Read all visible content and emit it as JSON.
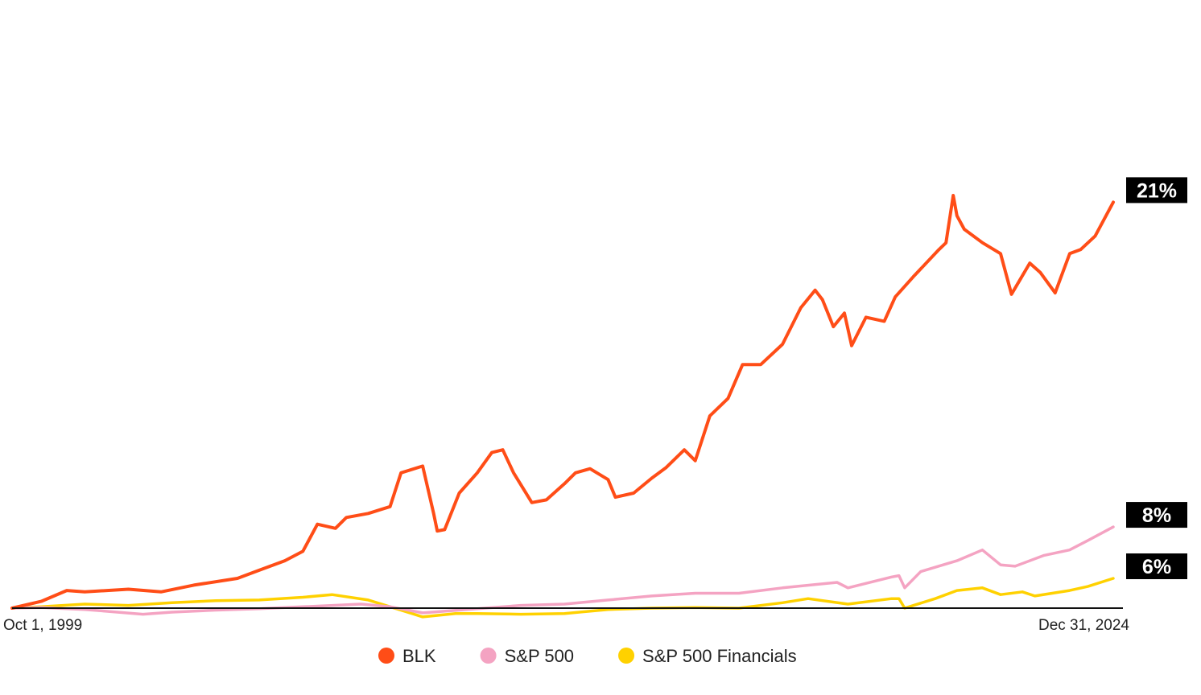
{
  "chart_data": {
    "type": "line",
    "x_start_label": "Oct 1, 1999",
    "x_end_label": "Dec 31, 2024",
    "x_range": [
      "1999-10-01",
      "2024-12-31"
    ],
    "y_range": [
      1,
      40
    ],
    "grid": false,
    "legend_position": "bottom-center",
    "series": [
      {
        "name": "BLK",
        "color": "#ff4d17",
        "end_label": "21%",
        "points": [
          [
            "1999-10-01",
            1.0
          ],
          [
            "2000-06-01",
            1.5
          ],
          [
            "2001-01-01",
            2.3
          ],
          [
            "2001-06-01",
            2.2
          ],
          [
            "2002-06-01",
            2.4
          ],
          [
            "2003-03-01",
            2.2
          ],
          [
            "2003-12-01",
            2.7
          ],
          [
            "2004-12-01",
            3.2
          ],
          [
            "2005-06-01",
            3.8
          ],
          [
            "2006-01-01",
            4.5
          ],
          [
            "2006-06-01",
            5.2
          ],
          [
            "2006-10-01",
            7.2
          ],
          [
            "2007-03-01",
            6.9
          ],
          [
            "2007-06-01",
            7.7
          ],
          [
            "2007-12-01",
            8.0
          ],
          [
            "2008-06-01",
            8.5
          ],
          [
            "2008-09-01",
            11.0
          ],
          [
            "2009-03-01",
            11.5
          ],
          [
            "2009-06-01",
            8.0
          ],
          [
            "2009-07-01",
            6.7
          ],
          [
            "2009-09-01",
            6.8
          ],
          [
            "2010-01-01",
            9.5
          ],
          [
            "2010-06-01",
            11.0
          ],
          [
            "2010-10-01",
            12.5
          ],
          [
            "2011-01-01",
            12.7
          ],
          [
            "2011-04-01",
            11.0
          ],
          [
            "2011-09-01",
            8.8
          ],
          [
            "2012-01-01",
            9.0
          ],
          [
            "2012-06-01",
            10.2
          ],
          [
            "2012-09-01",
            11.0
          ],
          [
            "2013-01-01",
            11.3
          ],
          [
            "2013-06-01",
            10.5
          ],
          [
            "2013-08-01",
            9.2
          ],
          [
            "2014-01-01",
            9.5
          ],
          [
            "2014-06-01",
            10.6
          ],
          [
            "2014-10-01",
            11.4
          ],
          [
            "2015-03-01",
            12.7
          ],
          [
            "2015-06-01",
            11.9
          ],
          [
            "2015-10-01",
            15.2
          ],
          [
            "2016-03-01",
            16.5
          ],
          [
            "2016-07-01",
            19.0
          ],
          [
            "2016-12-01",
            19.0
          ],
          [
            "2017-06-01",
            20.5
          ],
          [
            "2017-11-01",
            23.2
          ],
          [
            "2018-03-01",
            24.5
          ],
          [
            "2018-05-01",
            23.8
          ],
          [
            "2018-08-01",
            21.8
          ],
          [
            "2018-11-01",
            22.8
          ],
          [
            "2019-01-01",
            20.4
          ],
          [
            "2019-05-01",
            22.5
          ],
          [
            "2019-10-01",
            22.2
          ],
          [
            "2020-01-01",
            24.0
          ],
          [
            "2020-06-01",
            25.5
          ],
          [
            "2021-01-01",
            27.5
          ],
          [
            "2021-03-01",
            28.0
          ],
          [
            "2021-05-01",
            31.5
          ],
          [
            "2021-06-01",
            30.0
          ],
          [
            "2021-08-01",
            29.0
          ],
          [
            "2022-01-01",
            28.0
          ],
          [
            "2022-06-01",
            27.2
          ],
          [
            "2022-09-01",
            24.2
          ],
          [
            "2023-02-01",
            26.5
          ],
          [
            "2023-05-01",
            25.8
          ],
          [
            "2023-09-01",
            24.3
          ],
          [
            "2024-01-01",
            27.2
          ],
          [
            "2024-04-01",
            27.5
          ],
          [
            "2024-08-01",
            28.5
          ],
          [
            "2024-12-31",
            31.0
          ]
        ]
      },
      {
        "name": "S&P 500",
        "color": "#f4a3c2",
        "end_label": "8%",
        "points": [
          [
            "1999-10-01",
            1.0
          ],
          [
            "2000-06-01",
            1.05
          ],
          [
            "2001-06-01",
            0.9
          ],
          [
            "2002-10-01",
            0.55
          ],
          [
            "2003-06-01",
            0.7
          ],
          [
            "2004-06-01",
            0.85
          ],
          [
            "2005-06-01",
            0.95
          ],
          [
            "2006-06-01",
            1.1
          ],
          [
            "2007-10-01",
            1.3
          ],
          [
            "2008-06-01",
            1.1
          ],
          [
            "2009-03-01",
            0.65
          ],
          [
            "2010-06-01",
            0.95
          ],
          [
            "2011-06-01",
            1.2
          ],
          [
            "2012-06-01",
            1.3
          ],
          [
            "2013-06-01",
            1.6
          ],
          [
            "2014-06-01",
            1.9
          ],
          [
            "2015-06-01",
            2.1
          ],
          [
            "2016-06-01",
            2.1
          ],
          [
            "2017-06-01",
            2.5
          ],
          [
            "2018-09-01",
            2.9
          ],
          [
            "2018-12-01",
            2.5
          ],
          [
            "2019-12-01",
            3.3
          ],
          [
            "2020-02-01",
            3.4
          ],
          [
            "2020-03-20",
            2.5
          ],
          [
            "2020-08-01",
            3.7
          ],
          [
            "2021-06-01",
            4.5
          ],
          [
            "2021-12-31",
            5.3
          ],
          [
            "2022-06-01",
            4.2
          ],
          [
            "2022-10-01",
            4.1
          ],
          [
            "2023-06-01",
            4.9
          ],
          [
            "2023-12-31",
            5.3
          ],
          [
            "2024-06-01",
            6.0
          ],
          [
            "2024-12-31",
            7.0
          ]
        ]
      },
      {
        "name": "S&P 500 Financials",
        "color": "#ffd100",
        "end_label": "6%",
        "points": [
          [
            "1999-10-01",
            1.0
          ],
          [
            "2000-06-01",
            1.1
          ],
          [
            "2001-06-01",
            1.3
          ],
          [
            "2002-06-01",
            1.2
          ],
          [
            "2003-06-01",
            1.4
          ],
          [
            "2004-06-01",
            1.55
          ],
          [
            "2005-06-01",
            1.6
          ],
          [
            "2006-06-01",
            1.8
          ],
          [
            "2007-02-01",
            2.0
          ],
          [
            "2007-12-01",
            1.6
          ],
          [
            "2008-06-01",
            1.1
          ],
          [
            "2009-03-01",
            0.35
          ],
          [
            "2009-12-01",
            0.6
          ],
          [
            "2010-06-01",
            0.6
          ],
          [
            "2011-06-01",
            0.55
          ],
          [
            "2012-06-01",
            0.6
          ],
          [
            "2013-06-01",
            0.9
          ],
          [
            "2014-06-01",
            1.0
          ],
          [
            "2015-06-01",
            1.05
          ],
          [
            "2016-06-01",
            1.0
          ],
          [
            "2017-06-01",
            1.4
          ],
          [
            "2018-01-01",
            1.7
          ],
          [
            "2018-12-01",
            1.3
          ],
          [
            "2019-12-01",
            1.7
          ],
          [
            "2020-02-01",
            1.7
          ],
          [
            "2020-03-20",
            1.0
          ],
          [
            "2020-12-01",
            1.7
          ],
          [
            "2021-06-01",
            2.3
          ],
          [
            "2021-12-31",
            2.5
          ],
          [
            "2022-06-01",
            2.0
          ],
          [
            "2022-12-01",
            2.2
          ],
          [
            "2023-03-15",
            1.9
          ],
          [
            "2023-12-31",
            2.3
          ],
          [
            "2024-06-01",
            2.6
          ],
          [
            "2024-12-31",
            3.2
          ]
        ]
      }
    ]
  }
}
